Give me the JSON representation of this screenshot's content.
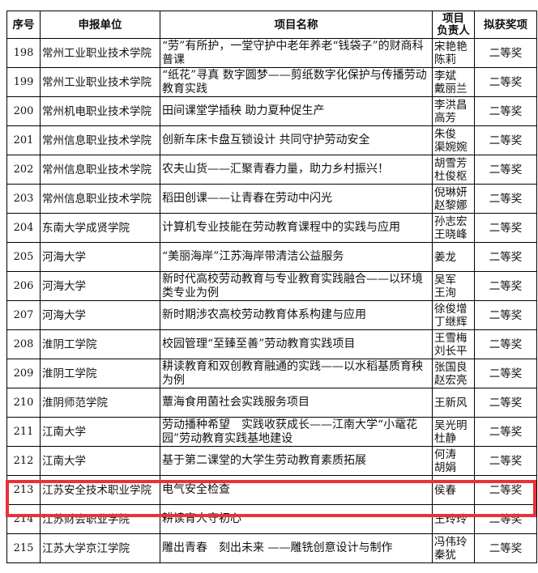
{
  "headers": {
    "no": "序号",
    "unit": "申报单位",
    "project": "项目名称",
    "leader": "项目\n负责人",
    "leader_l1": "项目",
    "leader_l2": "负责人",
    "award": "拟获奖项"
  },
  "highlight_color": "#e8323a",
  "highlighted_row": "213",
  "rows": [
    {
      "no": "198",
      "unit": "常州工业职业技术学院",
      "project": "“劳”有所护，一堂守护中老年养老“钱袋子”的财商科普课",
      "leader": "宋艳艳\n陈莉",
      "award": "二等奖"
    },
    {
      "no": "199",
      "unit": "常州工业职业技术学院",
      "project": "“纸花”寻真 数字圆梦——剪纸数字化保护与传播劳动教育实践",
      "leader": "李斌\n戴丽兰",
      "award": "二等奖"
    },
    {
      "no": "200",
      "unit": "常州机电职业技术学院",
      "project": "田间课堂学插秧 助力夏种促生产",
      "leader": "李洪昌\n高芳",
      "award": "二等奖"
    },
    {
      "no": "201",
      "unit": "常州信息职业技术学院",
      "project": "创新车床卡盘互锁设计 共同守护劳动安全",
      "leader": "朱俊\n渠婉婉",
      "award": "二等奖"
    },
    {
      "no": "202",
      "unit": "常州信息职业技术学院",
      "project": "农夫山货——汇聚青春力量，助力乡村振兴！",
      "leader": "胡雪芳\n杜俊枢",
      "award": "二等奖"
    },
    {
      "no": "203",
      "unit": "常州信息职业技术学院",
      "project": "稻田创课——让青春在劳动中闪光",
      "leader": "倪琳妍\n赵黎娜",
      "award": "二等奖"
    },
    {
      "no": "204",
      "unit": "东南大学成贤学院",
      "project": "计算机专业技能在劳动教育课程中的实践与应用",
      "leader": "孙志宏\n王晓峰",
      "award": "二等奖"
    },
    {
      "no": "205",
      "unit": "河海大学",
      "project": "“美丽海岸”江苏海岸带清洁公益服务",
      "leader": "姜龙",
      "award": "二等奖"
    },
    {
      "no": "206",
      "unit": "河海大学",
      "project": "新时代高校劳动教育与专业教育实践融合——以环境类专业为例",
      "leader": "吴军\n王洵",
      "award": "二等奖"
    },
    {
      "no": "207",
      "unit": "河海大学",
      "project": "新时期涉农高校劳动教育体系构建与应用",
      "leader": "徐俊增\n丁继辉",
      "award": "二等奖"
    },
    {
      "no": "208",
      "unit": "淮阴工学院",
      "project": "校园管理“至臻至善”劳动教育实践项目",
      "leader": "王雪梅\n刘长平",
      "award": "二等奖"
    },
    {
      "no": "209",
      "unit": "淮阴工学院",
      "project": "耕读教育和双创教育融通的实践——以水稻基质育秧为例",
      "leader": "张国良\n赵宏亮",
      "award": "二等奖"
    },
    {
      "no": "210",
      "unit": "淮阴师范学院",
      "project": "蕈海食用菌社会实践服务项目",
      "leader": "王新风",
      "award": "二等奖"
    },
    {
      "no": "211",
      "unit": "江南大学",
      "project": "劳动播种希望　实践收获成长——江南大学“小鼋花园”劳动教育实践基地建设",
      "leader": "吴光明\n杜静",
      "award": "二等奖"
    },
    {
      "no": "212",
      "unit": "江南大学",
      "project": "基于第二课堂的大学生劳动教育素质拓展",
      "leader": "何涛\n胡娟",
      "award": "二等奖"
    },
    {
      "no": "213",
      "unit": "江苏安全技术职业学院",
      "project": "电气安全检查",
      "leader": "侯春",
      "award": "二等奖"
    },
    {
      "no": "214",
      "unit": "江苏财会职业学院",
      "project": "耕读育人守初心",
      "leader": "王玲玲",
      "award": "二等奖"
    },
    {
      "no": "215",
      "unit": "江苏大学京江学院",
      "project": "雕出青春　刻出未来 ——雕铣创意设计与制作",
      "leader": "冯伟玲\n秦犹",
      "award": "二等奖"
    }
  ]
}
